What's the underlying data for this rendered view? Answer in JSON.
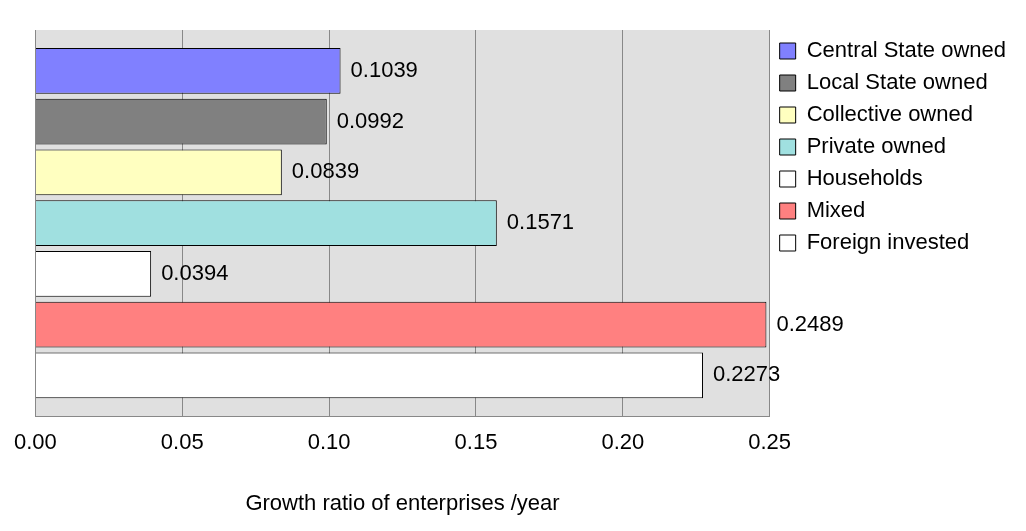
{
  "chart_data": {
    "type": "bar",
    "orientation": "horizontal",
    "xlabel": "Growth ratio of enterprises /year",
    "categories": [
      null
    ],
    "series": [
      {
        "name": "Central State owned",
        "color": "#8080ff",
        "values": [
          0.1039
        ]
      },
      {
        "name": "Local State owned",
        "color": "#808080",
        "values": [
          0.0992
        ]
      },
      {
        "name": "Collective owned",
        "color": "#ffffc0",
        "values": [
          0.0839
        ]
      },
      {
        "name": "Private owned",
        "color": "#a0e0e0",
        "values": [
          0.1571
        ]
      },
      {
        "name": "Households",
        "color": "#ffffff",
        "values": [
          0.0394
        ]
      },
      {
        "name": "Mixed",
        "color": "#ff8080",
        "values": [
          0.2489
        ]
      },
      {
        "name": "Foreign invested",
        "color": "#ffffff",
        "values": [
          0.2273
        ]
      }
    ],
    "xlim": [
      0,
      0.25
    ],
    "xticks": [
      {
        "value": 0,
        "label": "0.00"
      },
      {
        "value": 0.05,
        "label": "0.05"
      },
      {
        "value": 0.1,
        "label": "0.10"
      },
      {
        "value": 0.15,
        "label": "0.15"
      },
      {
        "value": 0.2,
        "label": "0.20"
      },
      {
        "value": 0.25,
        "label": "0.25"
      }
    ],
    "data_labels": true,
    "grid": "x",
    "legend": "top right"
  }
}
